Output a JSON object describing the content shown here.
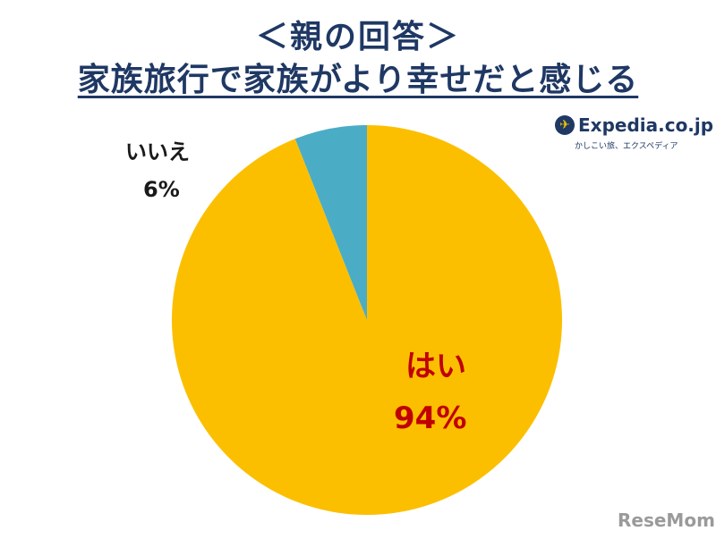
{
  "title_line1": "＜親の回答＞",
  "title_line2": "家族旅行で家族がより幸せだと感じる",
  "chart_data": {
    "type": "pie",
    "slices": [
      {
        "label": "はい",
        "value": 94,
        "value_label": "94%",
        "color": "#fcbf00",
        "label_color": "#c00000"
      },
      {
        "label": "いいえ",
        "value": 6,
        "value_label": "6%",
        "color": "#4bacc6",
        "label_color": "#1a1a1a"
      }
    ],
    "start": "12 o'clock",
    "direction": "clockwise"
  },
  "logo": {
    "name": "Expedia.co.jp",
    "tagline": "かしこい旅、エクスペディア",
    "icon": "plane-icon"
  },
  "watermark": "ReseMom"
}
